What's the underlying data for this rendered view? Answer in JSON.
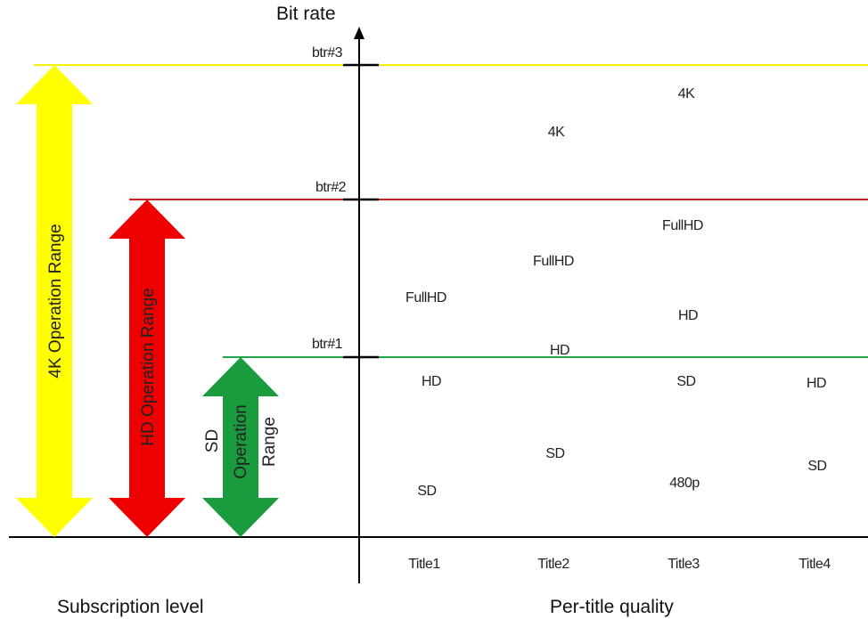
{
  "axis": {
    "y_label": "Bit rate",
    "x_label": "Per-title quality",
    "left_label": "Subscription level"
  },
  "thresholds": [
    {
      "label": "btr#3",
      "color": "#f2f200"
    },
    {
      "label": "btr#2",
      "color": "#cc1f1f"
    },
    {
      "label": "btr#1",
      "color": "#1fa64a"
    }
  ],
  "ranges": [
    {
      "label": "4K Operation Range",
      "color": "#ffff00"
    },
    {
      "label": "HD Operation Range",
      "color": "#ee0000"
    },
    {
      "label_line1": "SD",
      "label_line2": "Operation",
      "label_line3": "Range",
      "color": "#1a9b3e"
    }
  ],
  "titles": [
    "Title1",
    "Title2",
    "Title3",
    "Title4"
  ],
  "entries": {
    "t1_fullhd": "FullHD",
    "t1_hd": "HD",
    "t1_sd": "SD",
    "t2_4k": "4K",
    "t2_fullhd": "FullHD",
    "t2_hd": "HD",
    "t2_sd": "SD",
    "t3_4k": "4K",
    "t3_fullhd": "FullHD",
    "t3_hd": "HD",
    "t3_sd": "SD",
    "t3_480p": "480p",
    "t4_hd": "HD",
    "t4_sd": "SD"
  }
}
